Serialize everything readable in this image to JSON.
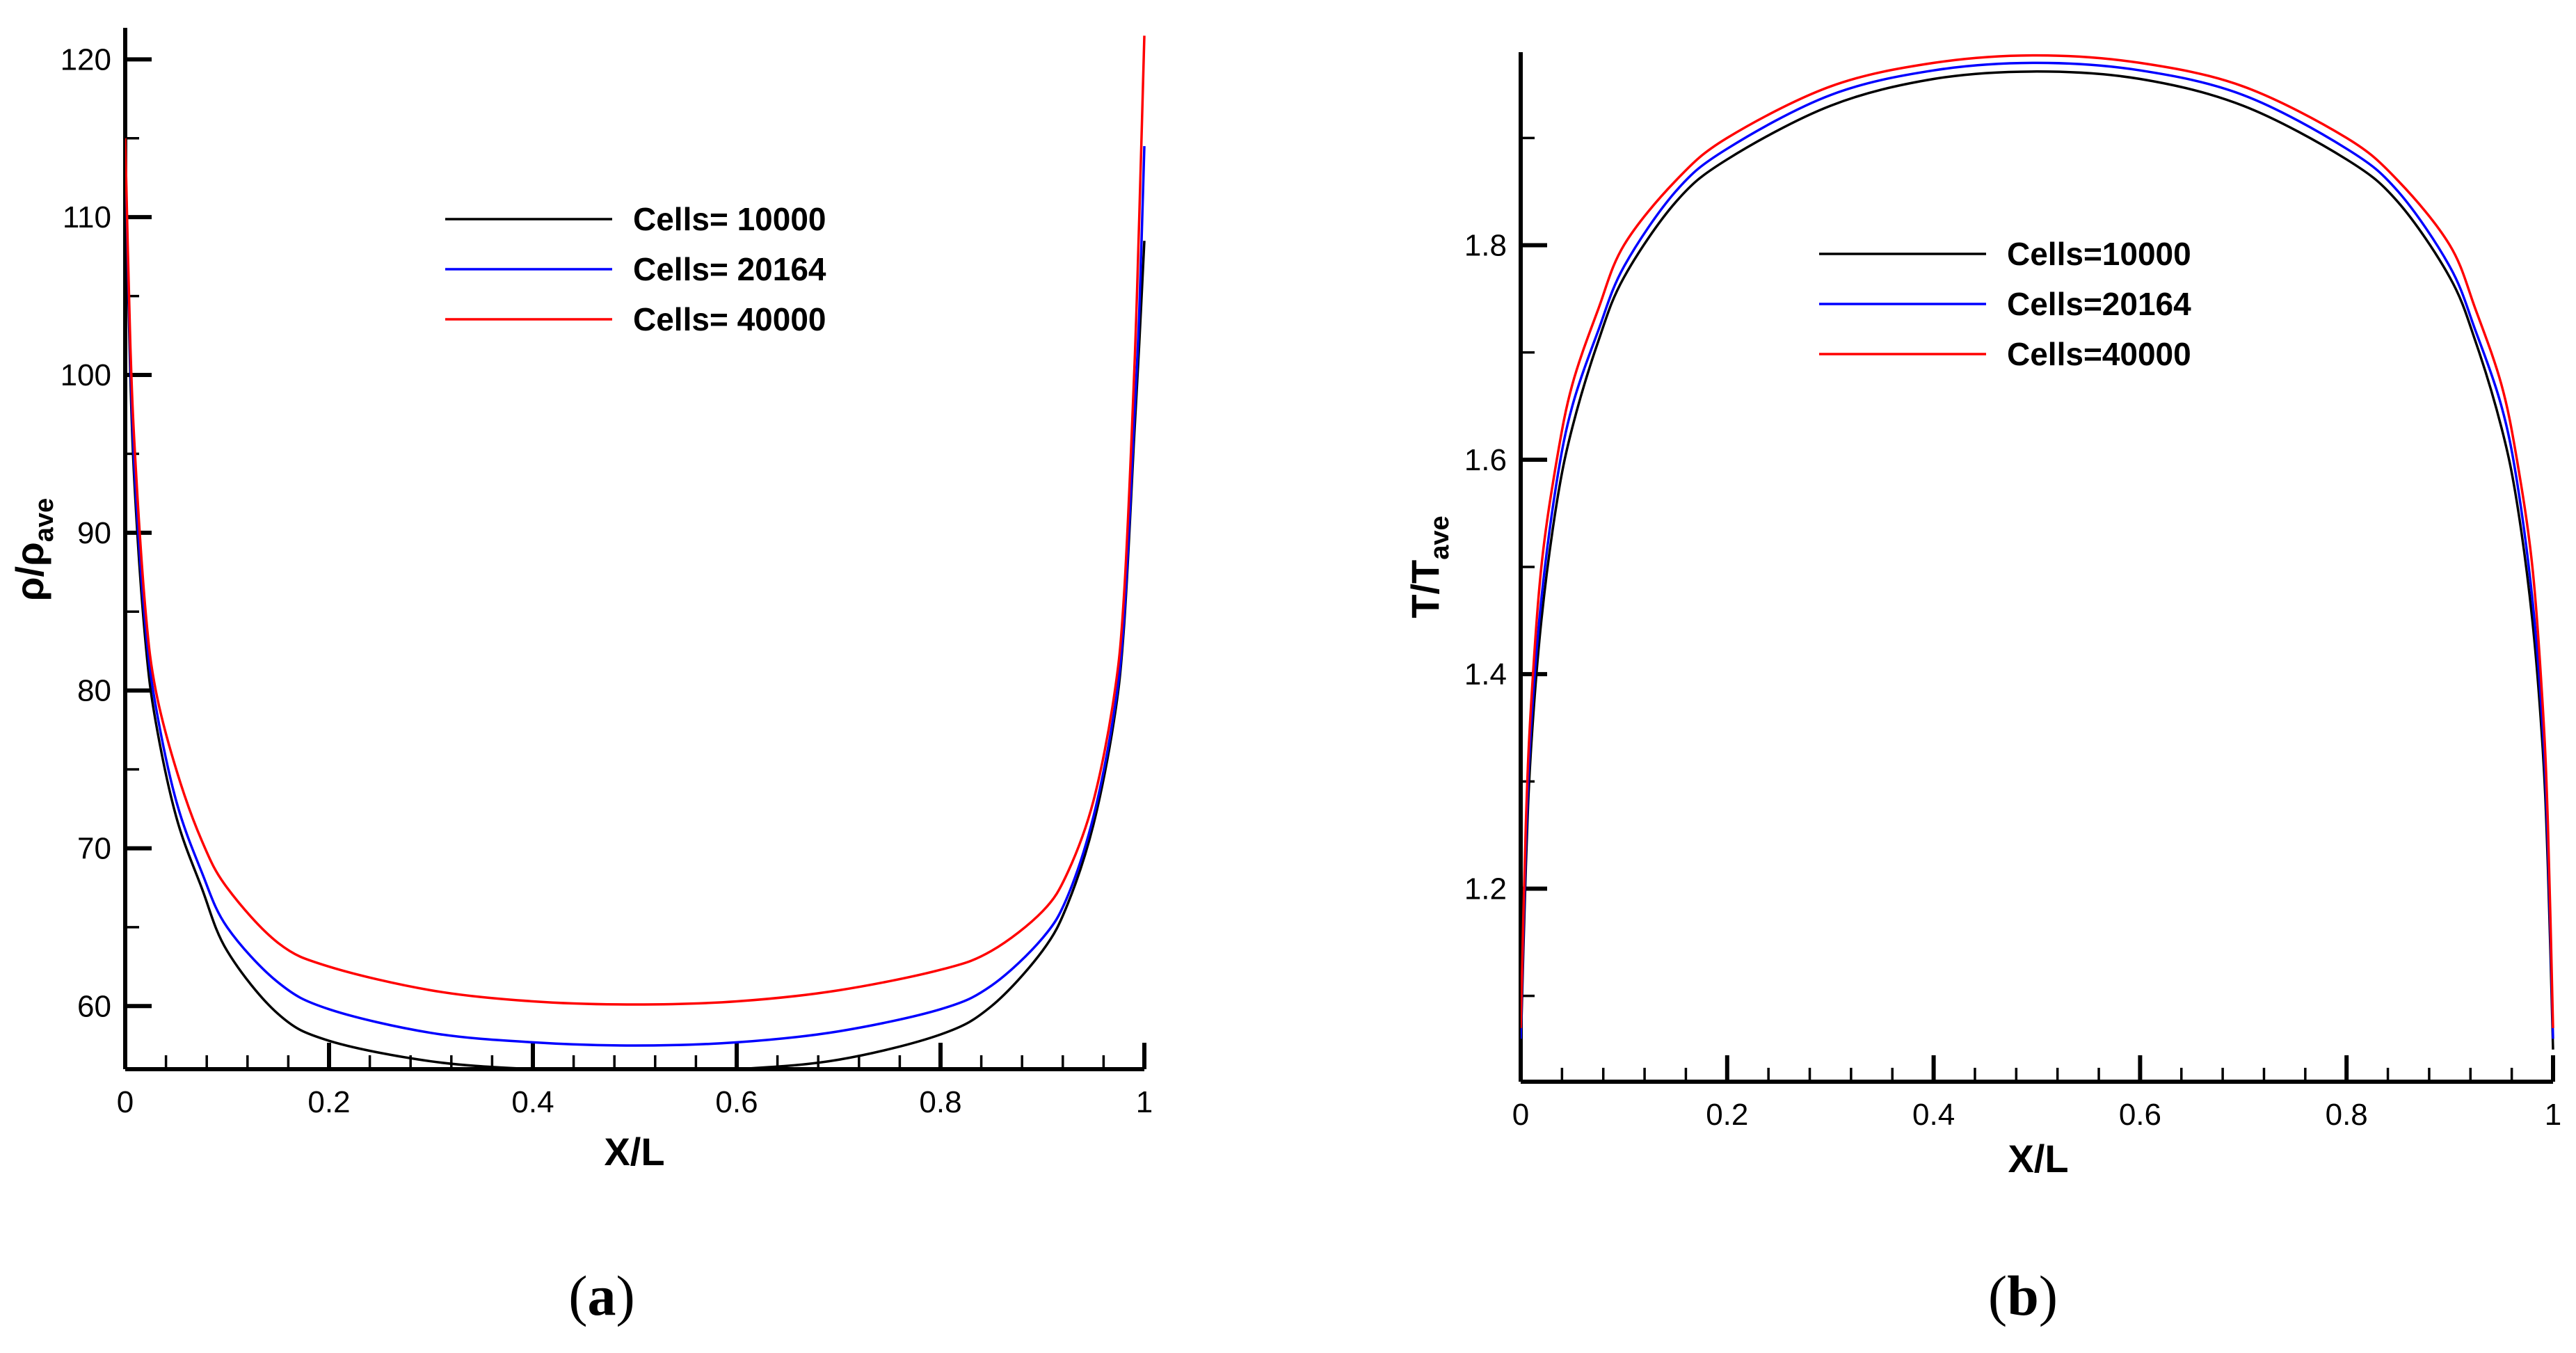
{
  "chart_data": [
    {
      "type": "line",
      "panel_label": "(a)",
      "panel_letter": "a",
      "title": "",
      "xlabel": "X/L",
      "ylabel": "ρ/ρave",
      "ylabel_main": "ρ/ρ",
      "ylabel_sub": "ave",
      "xlim": [
        0,
        1
      ],
      "ylim": [
        56,
        122
      ],
      "xticks": [
        0,
        0.2,
        0.4,
        0.6,
        0.8,
        1
      ],
      "xtick_labels": [
        "0",
        "0.2",
        "0.4",
        "0.6",
        "0.8",
        "1"
      ],
      "yticks": [
        60,
        70,
        80,
        90,
        100,
        110,
        120
      ],
      "ytick_labels": [
        "60",
        "70",
        "80",
        "90",
        "100",
        "110",
        "120"
      ],
      "legend_position": "top-center",
      "x": [
        0,
        0.005,
        0.01,
        0.02,
        0.03,
        0.05,
        0.075,
        0.1,
        0.15,
        0.2,
        0.3,
        0.4,
        0.5,
        0.6,
        0.7,
        0.8,
        0.85,
        0.9,
        0.925,
        0.95,
        0.97,
        0.98,
        0.99,
        0.995,
        1
      ],
      "series": [
        {
          "name": "Cells= 10000",
          "color": "#000000",
          "values": [
            114,
            100,
            92,
            83,
            78,
            72,
            67.5,
            63.5,
            59.5,
            57.8,
            56.5,
            56,
            55.8,
            56,
            56.6,
            58.2,
            60,
            63.5,
            66.5,
            71.5,
            78,
            84,
            96,
            102,
            108.5
          ]
        },
        {
          "name": "Cells= 20164",
          "color": "#0000ff",
          "values": [
            114.5,
            101,
            93,
            84,
            79,
            73,
            68.5,
            65,
            61.5,
            59.8,
            58.3,
            57.7,
            57.5,
            57.7,
            58.4,
            59.8,
            61.3,
            64.3,
            67,
            72,
            78.5,
            84.5,
            97,
            104,
            114.5
          ]
        },
        {
          "name": "Cells= 40000",
          "color": "#ff0000",
          "values": [
            115,
            102,
            94.5,
            85,
            80,
            75,
            70.5,
            67.5,
            64,
            62.5,
            61,
            60.3,
            60.1,
            60.3,
            61,
            62.3,
            63.5,
            66,
            68.5,
            73,
            79.5,
            86,
            100,
            110,
            121.5
          ]
        }
      ]
    },
    {
      "type": "line",
      "panel_label": "(b)",
      "panel_letter": "b",
      "title": "",
      "xlabel": "X/L",
      "ylabel": "T/Tave",
      "ylabel_main": "T/T",
      "ylabel_sub": "ave",
      "xlim": [
        0,
        1
      ],
      "ylim": [
        1.02,
        1.98
      ],
      "xticks": [
        0,
        0.2,
        0.4,
        0.6,
        0.8,
        1
      ],
      "xtick_labels": [
        "0",
        "0.2",
        "0.4",
        "0.6",
        "0.8",
        "1"
      ],
      "yticks": [
        1.2,
        1.4,
        1.6,
        1.8
      ],
      "ytick_labels": [
        "1.2",
        "1.4",
        "1.6",
        "1.8"
      ],
      "legend_position": "top-center",
      "x": [
        0,
        0.005,
        0.01,
        0.02,
        0.035,
        0.05,
        0.075,
        0.1,
        0.15,
        0.2,
        0.3,
        0.4,
        0.5,
        0.6,
        0.7,
        0.8,
        0.85,
        0.9,
        0.925,
        0.95,
        0.965,
        0.98,
        0.99,
        0.995,
        1
      ],
      "series": [
        {
          "name": "Cells=10000",
          "color": "#000000",
          "values": [
            1.05,
            1.22,
            1.33,
            1.45,
            1.56,
            1.63,
            1.71,
            1.77,
            1.84,
            1.88,
            1.93,
            1.955,
            1.962,
            1.955,
            1.93,
            1.88,
            1.84,
            1.77,
            1.71,
            1.63,
            1.56,
            1.45,
            1.33,
            1.22,
            1.05
          ]
        },
        {
          "name": "Cells=20164",
          "color": "#0000ff",
          "values": [
            1.06,
            1.24,
            1.35,
            1.47,
            1.58,
            1.65,
            1.72,
            1.78,
            1.85,
            1.89,
            1.94,
            1.963,
            1.97,
            1.963,
            1.94,
            1.89,
            1.85,
            1.78,
            1.72,
            1.65,
            1.58,
            1.47,
            1.35,
            1.24,
            1.06
          ]
        },
        {
          "name": "Cells=40000",
          "color": "#ff0000",
          "values": [
            1.07,
            1.26,
            1.37,
            1.5,
            1.6,
            1.67,
            1.74,
            1.8,
            1.86,
            1.9,
            1.948,
            1.97,
            1.977,
            1.97,
            1.948,
            1.9,
            1.86,
            1.8,
            1.74,
            1.67,
            1.6,
            1.5,
            1.37,
            1.26,
            1.07
          ]
        }
      ]
    }
  ]
}
